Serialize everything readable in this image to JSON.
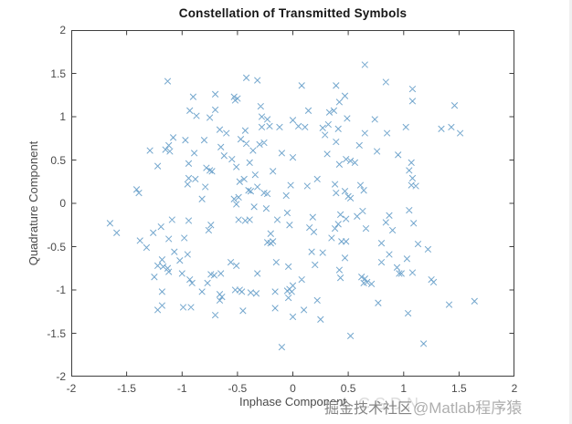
{
  "figure": {
    "background": "#ffffff",
    "axis_color": "#3f3f3f",
    "tick_label_color": "#4a4a4a"
  },
  "watermark": {
    "ghost": "CSDN",
    "site": "掘金技术社区",
    "handle": "@Matlab程序猿"
  },
  "chart_data": {
    "type": "scatter",
    "title": "Constellation of Transmitted Symbols",
    "xlabel": "Inphase Component",
    "ylabel": "Quadrature Component",
    "xlim": [
      -2,
      2
    ],
    "ylim": [
      -2,
      2
    ],
    "grid": false,
    "legend": null,
    "marker": "x",
    "marker_color": "#5b97c4",
    "xticks": {
      "values": [
        -2,
        -1.5,
        -1,
        -0.5,
        0,
        0.5,
        1,
        1.5,
        2
      ],
      "labels": [
        "-2",
        "-1.5",
        "-1",
        "-0.5",
        "0",
        "0.5",
        "1",
        "1.5",
        "2"
      ]
    },
    "yticks": {
      "values": [
        2,
        1.5,
        1,
        0.5,
        0,
        -0.5,
        -1,
        -1.5,
        -2
      ],
      "labels": [
        "2",
        "1.5",
        "1",
        "0.5",
        "0",
        "-0.5",
        "-1",
        "-1.5",
        "-2"
      ]
    },
    "points": [
      [
        -1.13,
        1.41
      ],
      [
        -0.42,
        1.45
      ],
      [
        -0.32,
        1.42
      ],
      [
        -0.9,
        1.23
      ],
      [
        -0.7,
        1.26
      ],
      [
        -0.53,
        1.23
      ],
      [
        -0.5,
        1.21
      ],
      [
        -0.52,
        1.19
      ],
      [
        -0.93,
        1.07
      ],
      [
        -0.87,
        1.01
      ],
      [
        -0.75,
        0.99
      ],
      [
        -0.7,
        1.08
      ],
      [
        -0.29,
        1.12
      ],
      [
        -0.28,
        1.0
      ],
      [
        -0.23,
        0.97
      ],
      [
        -0.28,
        0.88
      ],
      [
        -0.21,
        0.89
      ],
      [
        -0.12,
        0.88
      ],
      [
        0.0,
        0.96
      ],
      [
        -0.66,
        0.85
      ],
      [
        -0.6,
        0.81
      ],
      [
        -0.43,
        0.84
      ],
      [
        -0.47,
        0.74
      ],
      [
        -1.08,
        0.76
      ],
      [
        -0.97,
        0.73
      ],
      [
        -0.8,
        0.73
      ],
      [
        -1.12,
        0.67
      ],
      [
        -1.15,
        0.62
      ],
      [
        -1.11,
        0.6
      ],
      [
        -1.29,
        0.61
      ],
      [
        -0.89,
        0.58
      ],
      [
        -0.65,
        0.65
      ],
      [
        -0.62,
        0.55
      ],
      [
        -0.55,
        0.51
      ],
      [
        -0.42,
        0.69
      ],
      [
        -0.36,
        0.61
      ],
      [
        -0.3,
        0.68
      ],
      [
        -0.26,
        0.7
      ],
      [
        -0.1,
        0.58
      ],
      [
        -1.22,
        0.43
      ],
      [
        -0.94,
        0.46
      ],
      [
        -0.78,
        0.41
      ],
      [
        -0.75,
        0.38
      ],
      [
        -0.73,
        0.37
      ],
      [
        -0.51,
        0.42
      ],
      [
        -0.39,
        0.47
      ],
      [
        -0.94,
        0.29
      ],
      [
        -0.88,
        0.28
      ],
      [
        -0.95,
        0.22
      ],
      [
        -0.79,
        0.19
      ],
      [
        -0.48,
        0.25
      ],
      [
        -0.44,
        0.28
      ],
      [
        -0.34,
        0.33
      ],
      [
        -0.18,
        0.37
      ],
      [
        -0.02,
        0.21
      ],
      [
        -0.49,
        0.07
      ],
      [
        -0.4,
        0.15
      ],
      [
        -0.38,
        0.14
      ],
      [
        -0.32,
        0.19
      ],
      [
        -0.26,
        0.12
      ],
      [
        -0.23,
        0.11
      ],
      [
        -1.41,
        0.16
      ],
      [
        -1.39,
        0.12
      ],
      [
        -0.82,
        0.05
      ],
      [
        -0.53,
        0.05
      ],
      [
        -0.06,
        0.09
      ],
      [
        0.0,
        0.53
      ],
      [
        0.65,
        1.6
      ],
      [
        0.84,
        1.4
      ],
      [
        0.08,
        1.36
      ],
      [
        0.39,
        1.36
      ],
      [
        1.08,
        1.32
      ],
      [
        0.47,
        1.24
      ],
      [
        0.42,
        1.17
      ],
      [
        1.08,
        1.18
      ],
      [
        1.46,
        1.13
      ],
      [
        0.14,
        1.07
      ],
      [
        0.33,
        1.05
      ],
      [
        0.37,
        1.07
      ],
      [
        0.49,
        0.98
      ],
      [
        0.74,
        0.97
      ],
      [
        0.05,
        0.89
      ],
      [
        0.11,
        0.88
      ],
      [
        0.27,
        0.87
      ],
      [
        0.32,
        0.91
      ],
      [
        0.41,
        0.86
      ],
      [
        0.29,
        0.79
      ],
      [
        0.65,
        0.81
      ],
      [
        0.85,
        0.81
      ],
      [
        1.02,
        0.88
      ],
      [
        1.34,
        0.86
      ],
      [
        1.43,
        0.88
      ],
      [
        1.51,
        0.81
      ],
      [
        0.39,
        0.71
      ],
      [
        0.6,
        0.67
      ],
      [
        0.76,
        0.6
      ],
      [
        0.31,
        0.57
      ],
      [
        0.95,
        0.56
      ],
      [
        0.42,
        0.45
      ],
      [
        0.48,
        0.51
      ],
      [
        0.52,
        0.49
      ],
      [
        0.56,
        0.47
      ],
      [
        1.07,
        0.47
      ],
      [
        1.05,
        0.38
      ],
      [
        1.08,
        0.29
      ],
      [
        0.22,
        0.28
      ],
      [
        0.13,
        0.2
      ],
      [
        0.38,
        0.22
      ],
      [
        0.61,
        0.21
      ],
      [
        0.64,
        0.15
      ],
      [
        1.07,
        0.21
      ],
      [
        1.11,
        0.2
      ],
      [
        0.39,
        0.12
      ],
      [
        0.47,
        0.14
      ],
      [
        0.5,
        0.08
      ],
      [
        0.52,
        0.06
      ],
      [
        -0.51,
        -0.01
      ],
      [
        -0.35,
        -0.04
      ],
      [
        -0.24,
        -0.06
      ],
      [
        -0.49,
        -0.19
      ],
      [
        -0.43,
        -0.2
      ],
      [
        -0.39,
        -0.19
      ],
      [
        -0.14,
        -0.19
      ],
      [
        -0.05,
        -0.11
      ],
      [
        -0.03,
        -0.25
      ],
      [
        -1.65,
        -0.23
      ],
      [
        -1.59,
        -0.34
      ],
      [
        -1.19,
        -0.27
      ],
      [
        -1.26,
        -0.34
      ],
      [
        -1.09,
        -0.19
      ],
      [
        -0.94,
        -0.2
      ],
      [
        -0.76,
        -0.31
      ],
      [
        -0.74,
        -0.25
      ],
      [
        -1.12,
        -0.41
      ],
      [
        -0.98,
        -0.4
      ],
      [
        -1.38,
        -0.43
      ],
      [
        -1.32,
        -0.51
      ],
      [
        -0.2,
        -0.35
      ],
      [
        -0.23,
        -0.45
      ],
      [
        -0.2,
        -0.46
      ],
      [
        -0.18,
        -0.44
      ],
      [
        -1.07,
        -0.56
      ],
      [
        -0.95,
        -0.59
      ],
      [
        -1.18,
        -0.65
      ],
      [
        -1.22,
        -0.72
      ],
      [
        -1.17,
        -0.73
      ],
      [
        -1.13,
        -0.75
      ],
      [
        -1.12,
        -0.79
      ],
      [
        -1.02,
        -0.66
      ],
      [
        -1.25,
        -0.85
      ],
      [
        -0.56,
        -0.68
      ],
      [
        -0.51,
        -0.72
      ],
      [
        -0.74,
        -0.82
      ],
      [
        -0.71,
        -0.83
      ],
      [
        -0.65,
        -0.81
      ],
      [
        -0.32,
        -0.81
      ],
      [
        -0.15,
        -0.68
      ],
      [
        -0.04,
        -0.73
      ],
      [
        -1.0,
        -0.81
      ],
      [
        -0.93,
        -0.88
      ],
      [
        -0.91,
        -0.92
      ],
      [
        -0.77,
        -0.92
      ],
      [
        -1.18,
        -1.02
      ],
      [
        -0.82,
        -1.02
      ],
      [
        -0.66,
        -1.05
      ],
      [
        -0.64,
        -1.08
      ],
      [
        -0.66,
        -1.12
      ],
      [
        -0.52,
        -1.0
      ],
      [
        -0.48,
        -1.0
      ],
      [
        -0.46,
        -1.02
      ],
      [
        -0.38,
        -1.03
      ],
      [
        -0.33,
        -1.04
      ],
      [
        -0.16,
        -1.02
      ],
      [
        -0.05,
        -1.01
      ],
      [
        -0.03,
        -0.99
      ],
      [
        -0.01,
        -1.02
      ],
      [
        -0.04,
        -1.09
      ],
      [
        -1.22,
        -1.23
      ],
      [
        -1.18,
        -1.18
      ],
      [
        -0.99,
        -1.2
      ],
      [
        -0.92,
        -1.2
      ],
      [
        -0.7,
        -1.29
      ],
      [
        -0.45,
        -1.24
      ],
      [
        -0.16,
        -1.21
      ],
      [
        0.0,
        -1.31
      ],
      [
        -0.1,
        -1.66
      ],
      [
        1.05,
        -0.08
      ],
      [
        0.43,
        -0.13
      ],
      [
        0.48,
        -0.18
      ],
      [
        0.58,
        -0.15
      ],
      [
        0.63,
        -0.09
      ],
      [
        0.87,
        -0.14
      ],
      [
        0.84,
        -0.22
      ],
      [
        1.09,
        -0.23
      ],
      [
        0.18,
        -0.16
      ],
      [
        0.15,
        -0.28
      ],
      [
        0.19,
        -0.33
      ],
      [
        0.41,
        -0.24
      ],
      [
        0.38,
        -0.29
      ],
      [
        0.66,
        -0.29
      ],
      [
        0.9,
        -0.31
      ],
      [
        0.35,
        -0.4
      ],
      [
        0.44,
        -0.44
      ],
      [
        0.48,
        -0.44
      ],
      [
        0.8,
        -0.46
      ],
      [
        1.13,
        -0.47
      ],
      [
        1.22,
        -0.53
      ],
      [
        0.17,
        -0.56
      ],
      [
        0.27,
        -0.57
      ],
      [
        0.47,
        -0.63
      ],
      [
        0.2,
        -0.71
      ],
      [
        0.87,
        -0.59
      ],
      [
        0.8,
        -0.68
      ],
      [
        1.03,
        -0.64
      ],
      [
        0.94,
        -0.74
      ],
      [
        0.96,
        -0.81
      ],
      [
        0.98,
        -0.81
      ],
      [
        1.08,
        -0.8
      ],
      [
        0.42,
        -0.77
      ],
      [
        0.43,
        -0.86
      ],
      [
        0.62,
        -0.85
      ],
      [
        0.65,
        -0.87
      ],
      [
        0.67,
        -0.91
      ],
      [
        0.64,
        -0.92
      ],
      [
        0.71,
        -0.93
      ],
      [
        1.25,
        -0.88
      ],
      [
        1.27,
        -0.91
      ],
      [
        0.08,
        -0.88
      ],
      [
        0.0,
        -0.95
      ],
      [
        0.22,
        -1.12
      ],
      [
        0.77,
        -1.15
      ],
      [
        1.41,
        -1.17
      ],
      [
        1.64,
        -1.13
      ],
      [
        0.1,
        -1.23
      ],
      [
        1.04,
        -1.27
      ],
      [
        0.25,
        -1.34
      ],
      [
        0.52,
        -1.53
      ],
      [
        1.18,
        -1.62
      ]
    ]
  }
}
